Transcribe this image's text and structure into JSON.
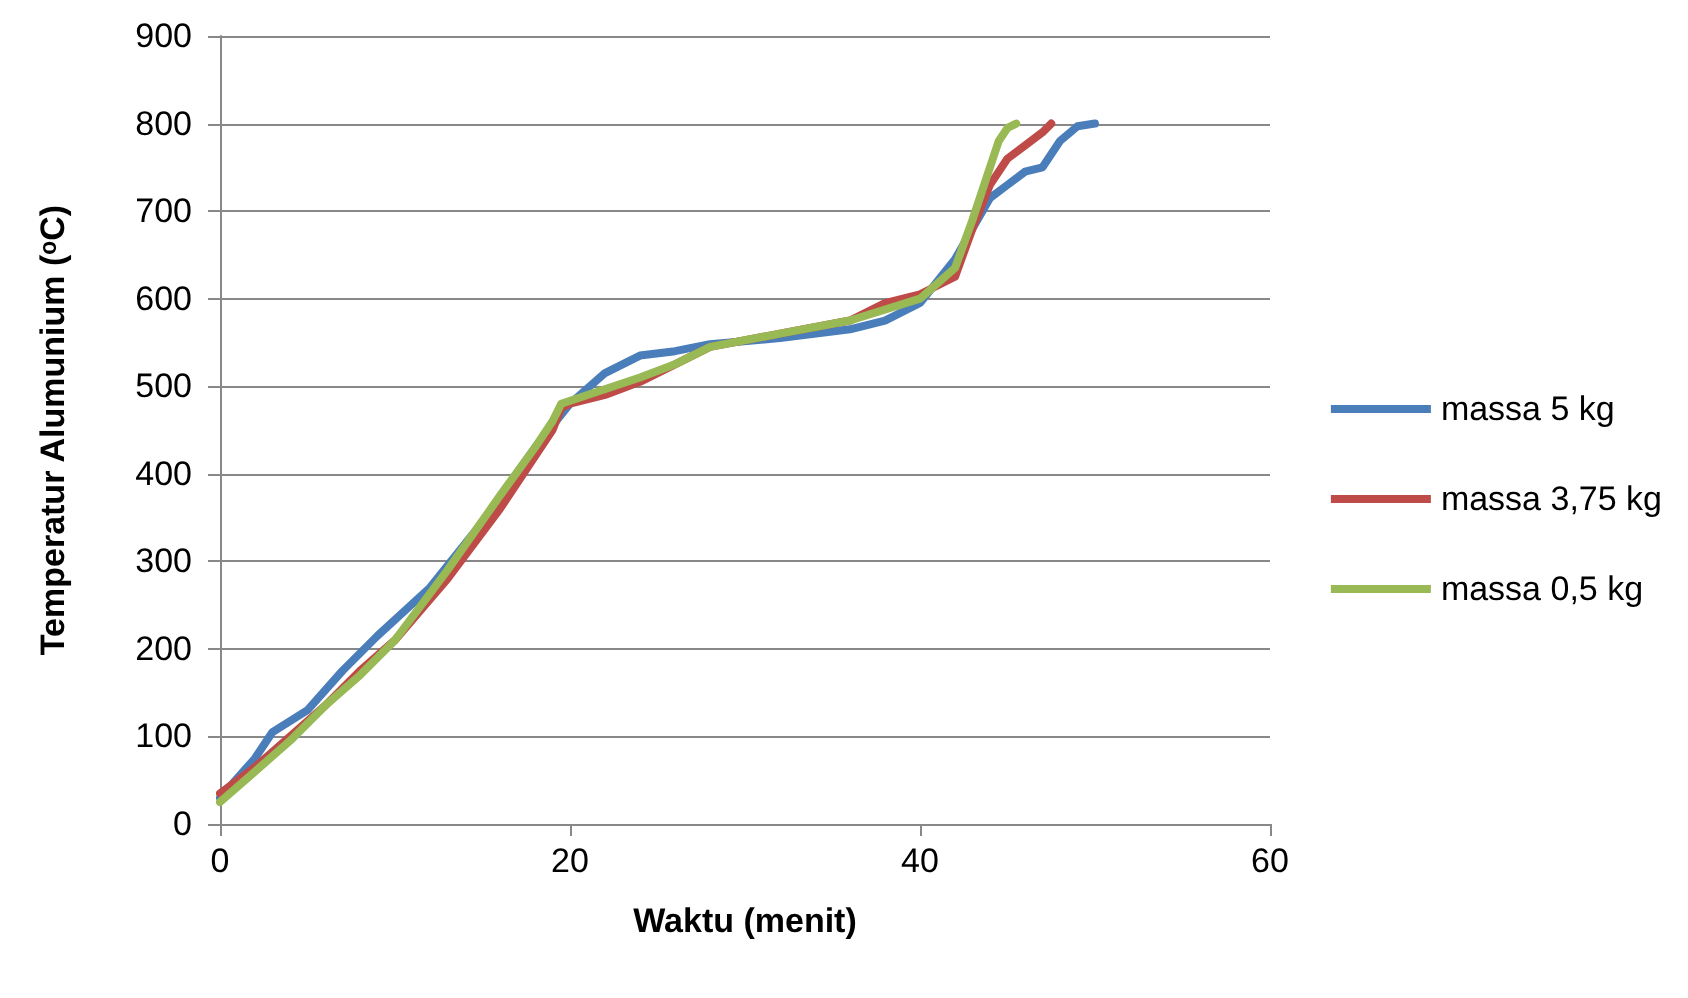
{
  "chart_data": {
    "type": "line",
    "xlabel": "Waktu (menit)",
    "ylabel": "Temperatur Alumunium (ᵒC)",
    "xlim": [
      0,
      60
    ],
    "xticks": [
      0,
      20,
      40,
      60
    ],
    "ylim": [
      0,
      900
    ],
    "yticks": [
      0,
      100,
      200,
      300,
      400,
      500,
      600,
      700,
      800,
      900
    ],
    "grid": "y",
    "legend": "right",
    "marker": "none",
    "line_style": "solid",
    "series": [
      {
        "name": "massa 5 kg",
        "color": "#4a7ebb",
        "x": [
          0,
          2,
          3,
          5,
          7,
          9,
          12,
          15,
          18,
          20,
          22,
          24,
          26,
          28,
          32,
          36,
          38,
          40,
          42,
          43,
          44,
          45,
          46,
          47,
          48,
          49,
          50
        ],
        "values": [
          30,
          75,
          105,
          130,
          175,
          215,
          270,
          345,
          430,
          480,
          515,
          535,
          540,
          548,
          555,
          565,
          575,
          595,
          645,
          680,
          715,
          730,
          745,
          750,
          780,
          797,
          800
        ]
      },
      {
        "name": "massa 3,75 kg",
        "color": "#be4b48",
        "x": [
          0,
          2,
          4,
          6,
          8,
          10,
          13,
          16,
          18,
          19,
          19.5,
          20,
          22,
          24,
          26,
          28,
          32,
          36,
          38,
          40,
          42,
          43,
          44,
          45,
          46,
          47,
          47.5
        ],
        "values": [
          35,
          65,
          100,
          135,
          175,
          210,
          280,
          360,
          420,
          450,
          475,
          480,
          490,
          505,
          525,
          545,
          560,
          575,
          595,
          605,
          625,
          680,
          730,
          760,
          775,
          790,
          800
        ]
      },
      {
        "name": "massa 0,5 kg",
        "color": "#98b954",
        "x": [
          0,
          2,
          4,
          6,
          8,
          10,
          13,
          16,
          18,
          19,
          19.5,
          21,
          24,
          26,
          28,
          32,
          36,
          40,
          42,
          43,
          44,
          44.5,
          45,
          45.5
        ],
        "values": [
          25,
          60,
          95,
          135,
          170,
          210,
          290,
          375,
          430,
          460,
          480,
          490,
          510,
          525,
          545,
          560,
          575,
          600,
          635,
          690,
          750,
          780,
          795,
          800
        ]
      }
    ]
  }
}
